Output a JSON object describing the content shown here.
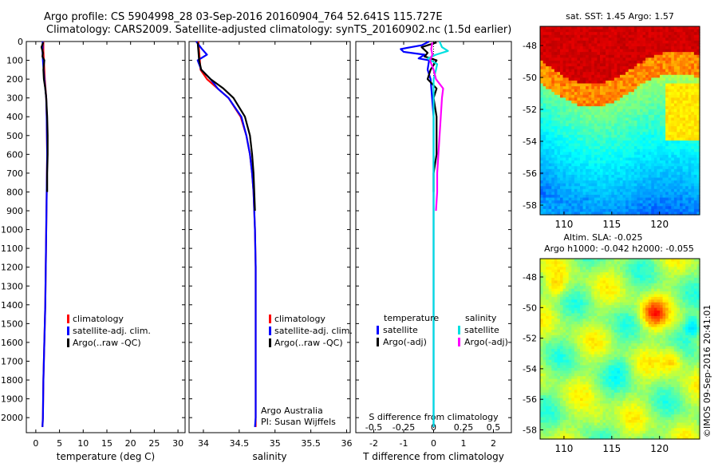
{
  "title_line1": "Argo profile: CS 5904998_28 03-Sep-2016 20160904_764 52.641S 115.727E",
  "title_line2": "Climatology: CARS2009. Satellite-adjusted climatology: synTS_20160902.nc (1.5d earlier)",
  "sst_title": "sat. SST: 1.45 Argo: 1.57",
  "sla_title_line1": "Altim. SLA: -0.025",
  "sla_title_line2": "Argo h1000: -0.042 h2000: -0.055",
  "credit": "©IMOS 09-Sep-2016 20:41:01",
  "float_info_line1": "Argo Australia",
  "float_info_line2": "PI: Susan Wijffels",
  "chart_data": [
    {
      "type": "line",
      "id": "temperature-profile",
      "xlabel": "temperature (deg C)",
      "ylabel": "",
      "xlim": [
        -2,
        31.5
      ],
      "ylim": [
        2080,
        0
      ],
      "xticks": [
        0,
        5,
        10,
        15,
        20,
        25,
        30
      ],
      "xtick_labels": [
        "0",
        "5",
        "10",
        "15",
        "20",
        "25",
        "30"
      ],
      "yticks": [
        0,
        100,
        200,
        300,
        400,
        500,
        600,
        700,
        800,
        900,
        1000,
        1100,
        1200,
        1300,
        1400,
        1500,
        1600,
        1700,
        1800,
        1900,
        2000
      ],
      "ytick_labels": [
        "0",
        "100",
        "200",
        "300",
        "400",
        "500",
        "600",
        "700",
        "800",
        "900",
        "1000",
        "1100",
        "1200",
        "1300",
        "1400",
        "1500",
        "1600",
        "1700",
        "1800",
        "1900",
        "2000"
      ],
      "legend": [
        "climatology",
        "satellite-adj. clim.",
        "Argo(..raw -QC)"
      ],
      "legend_placement": "lower-middle",
      "series": [
        {
          "name": "climatology",
          "color": "#ff0000",
          "depth": [
            0,
            50,
            100,
            200,
            300,
            400,
            600,
            800,
            1000,
            1200,
            1400,
            1600,
            1800,
            2000,
            2050
          ],
          "values": [
            1.6,
            1.6,
            1.7,
            1.9,
            2.2,
            2.3,
            2.4,
            2.3,
            2.2,
            2.1,
            2.0,
            1.8,
            1.6,
            1.5,
            1.4
          ]
        },
        {
          "name": "satellite-adj. clim.",
          "color": "#0000ff",
          "depth": [
            0,
            50,
            100,
            200,
            300,
            400,
            600,
            800,
            1000,
            1200,
            1400,
            1600,
            1800,
            2000,
            2050
          ],
          "values": [
            1.45,
            1.4,
            1.5,
            1.8,
            2.2,
            2.3,
            2.4,
            2.3,
            2.2,
            2.1,
            2.0,
            1.8,
            1.6,
            1.5,
            1.4
          ]
        },
        {
          "name": "Argo(..raw -QC)",
          "color": "#000000",
          "depth": [
            5,
            30,
            60,
            80,
            100,
            150,
            200,
            250,
            300,
            400,
            500,
            600,
            700,
            800
          ],
          "values": [
            1.57,
            1.2,
            1.5,
            1.4,
            1.8,
            1.6,
            1.7,
            2.0,
            2.2,
            2.4,
            2.5,
            2.5,
            2.4,
            2.4
          ]
        }
      ]
    },
    {
      "type": "line",
      "id": "salinity-profile",
      "xlabel": "salinity",
      "ylabel": "",
      "xlim": [
        33.8,
        36.05
      ],
      "ylim": [
        2080,
        0
      ],
      "xticks": [
        34,
        34.5,
        35,
        35.5,
        36
      ],
      "xtick_labels": [
        "34",
        "34.5",
        "35",
        "35.5",
        "36"
      ],
      "legend": [
        "climatology",
        "satellite-adj. clim.",
        "Argo(..raw -QC)"
      ],
      "legend_placement": "lower-right",
      "series": [
        {
          "name": "climatology",
          "color": "#ff0000",
          "depth": [
            0,
            50,
            100,
            150,
            200,
            250,
            300,
            400,
            500,
            600,
            700,
            800,
            1000,
            1200,
            1500,
            2000,
            2050
          ],
          "values": [
            33.93,
            33.94,
            33.95,
            33.96,
            34.05,
            34.2,
            34.35,
            34.52,
            34.6,
            34.65,
            34.68,
            34.7,
            34.72,
            34.73,
            34.73,
            34.73,
            34.73
          ]
        },
        {
          "name": "satellite-adj. clim.",
          "color": "#0000ff",
          "depth": [
            0,
            40,
            70,
            100,
            150,
            200,
            250,
            300,
            400,
            500,
            600,
            700,
            800,
            1000,
            1200,
            1500,
            2000,
            2050
          ],
          "values": [
            33.9,
            33.98,
            34.05,
            33.92,
            33.97,
            34.1,
            34.2,
            34.35,
            34.53,
            34.6,
            34.65,
            34.68,
            34.7,
            34.72,
            34.73,
            34.73,
            34.73,
            34.72
          ]
        },
        {
          "name": "Argo(..raw -QC)",
          "color": "#000000",
          "depth": [
            5,
            50,
            100,
            150,
            200,
            250,
            300,
            400,
            500,
            600,
            700,
            800,
            900
          ],
          "values": [
            33.92,
            33.93,
            33.94,
            33.97,
            34.1,
            34.28,
            34.42,
            34.58,
            34.65,
            34.68,
            34.7,
            34.71,
            34.72
          ]
        }
      ]
    },
    {
      "type": "line",
      "id": "difference-profile",
      "xlabel": "T difference from climatology",
      "top_xlabel": "S difference from climatology",
      "ylabel": "",
      "xlim": [
        -2.6,
        2.6
      ],
      "ylim": [
        2080,
        0
      ],
      "xticks": [
        -2,
        -1,
        0,
        1,
        2
      ],
      "xtick_labels": [
        "-2",
        "-1",
        "0",
        "1",
        "2"
      ],
      "top_xticks": [
        -0.5,
        -0.25,
        0,
        0.25,
        0.5
      ],
      "top_xtick_labels": [
        "-0.5",
        "-0.25",
        "0",
        "0.25",
        "0.5"
      ],
      "legend_group_temperature": "temperature",
      "legend_group_salinity": "salinity",
      "legend_placement": "lower-middle",
      "legend": [
        {
          "group": "temperature",
          "name": "satellite",
          "color": "#0000ff"
        },
        {
          "group": "temperature",
          "name": "Argo(-adj)",
          "color": "#000000"
        },
        {
          "group": "salinity",
          "name": "satellite",
          "color": "#00e0e0"
        },
        {
          "group": "salinity",
          "name": "Argo(-adj)",
          "color": "#ff00ff"
        }
      ],
      "series": [
        {
          "name": "T satellite",
          "color": "#0000ff",
          "depth": [
            0,
            20,
            40,
            55,
            70,
            90,
            100,
            150,
            200,
            300,
            400,
            600,
            900,
            1200,
            1500,
            1800,
            2050
          ],
          "values": [
            -0.15,
            -0.4,
            -1.1,
            -1.0,
            -0.3,
            -0.5,
            -0.15,
            -0.2,
            -0.1,
            -0.05,
            0,
            0,
            0,
            0,
            0,
            0,
            0
          ]
        },
        {
          "name": "T Argo(-adj)",
          "color": "#000000",
          "depth": [
            5,
            30,
            60,
            80,
            100,
            150,
            200,
            250,
            300,
            400,
            500,
            600,
            700,
            800
          ],
          "values": [
            0.1,
            -0.4,
            -0.2,
            -0.3,
            0.1,
            -0.1,
            -0.2,
            0.1,
            0.0,
            0.1,
            0.1,
            0.1,
            0.0,
            0.0
          ]
        },
        {
          "name": "S satellite",
          "color": "#00e0e0",
          "depth": [
            0,
            30,
            50,
            70,
            90,
            120,
            150,
            200,
            300,
            500,
            800,
            1200,
            1600,
            2050
          ],
          "values": [
            0.05,
            0.07,
            0.12,
            0.02,
            -0.05,
            0.03,
            0.02,
            0,
            0,
            0,
            0,
            0,
            0,
            0
          ]
        },
        {
          "name": "S Argo(-adj)",
          "color": "#ff00ff",
          "depth": [
            5,
            40,
            70,
            100,
            150,
            200,
            250,
            300,
            400,
            500,
            600,
            700,
            800,
            900
          ],
          "values": [
            -0.01,
            -0.02,
            -0.01,
            -0.03,
            0.0,
            0.02,
            0.08,
            0.07,
            0.06,
            0.05,
            0.04,
            0.03,
            0.03,
            0.02
          ]
        }
      ]
    },
    {
      "type": "heatmap",
      "id": "sst-map",
      "title": "sat. SST: 1.45 Argo: 1.57",
      "xlim": [
        107.5,
        124.2
      ],
      "ylim": [
        -58.6,
        -46.8
      ],
      "xticks": [
        110,
        115,
        120
      ],
      "xtick_labels": [
        "110",
        "115",
        "120"
      ],
      "yticks": [
        -48,
        -50,
        -52,
        -54,
        -56,
        -58
      ],
      "ytick_labels": [
        "-48",
        "-50",
        "-52",
        "-54",
        "-56",
        "-58"
      ],
      "grid": false
    },
    {
      "type": "heatmap",
      "id": "sla-map",
      "title": "Altim. SLA: -0.025",
      "xlim": [
        107.5,
        124.2
      ],
      "ylim": [
        -58.6,
        -46.8
      ],
      "xticks": [
        110,
        115,
        120
      ],
      "xtick_labels": [
        "110",
        "115",
        "120"
      ],
      "yticks": [
        -48,
        -50,
        -52,
        -54,
        -56,
        -58
      ],
      "ytick_labels": [
        "-48",
        "-50",
        "-52",
        "-54",
        "-56",
        "-58"
      ],
      "grid": false
    }
  ]
}
